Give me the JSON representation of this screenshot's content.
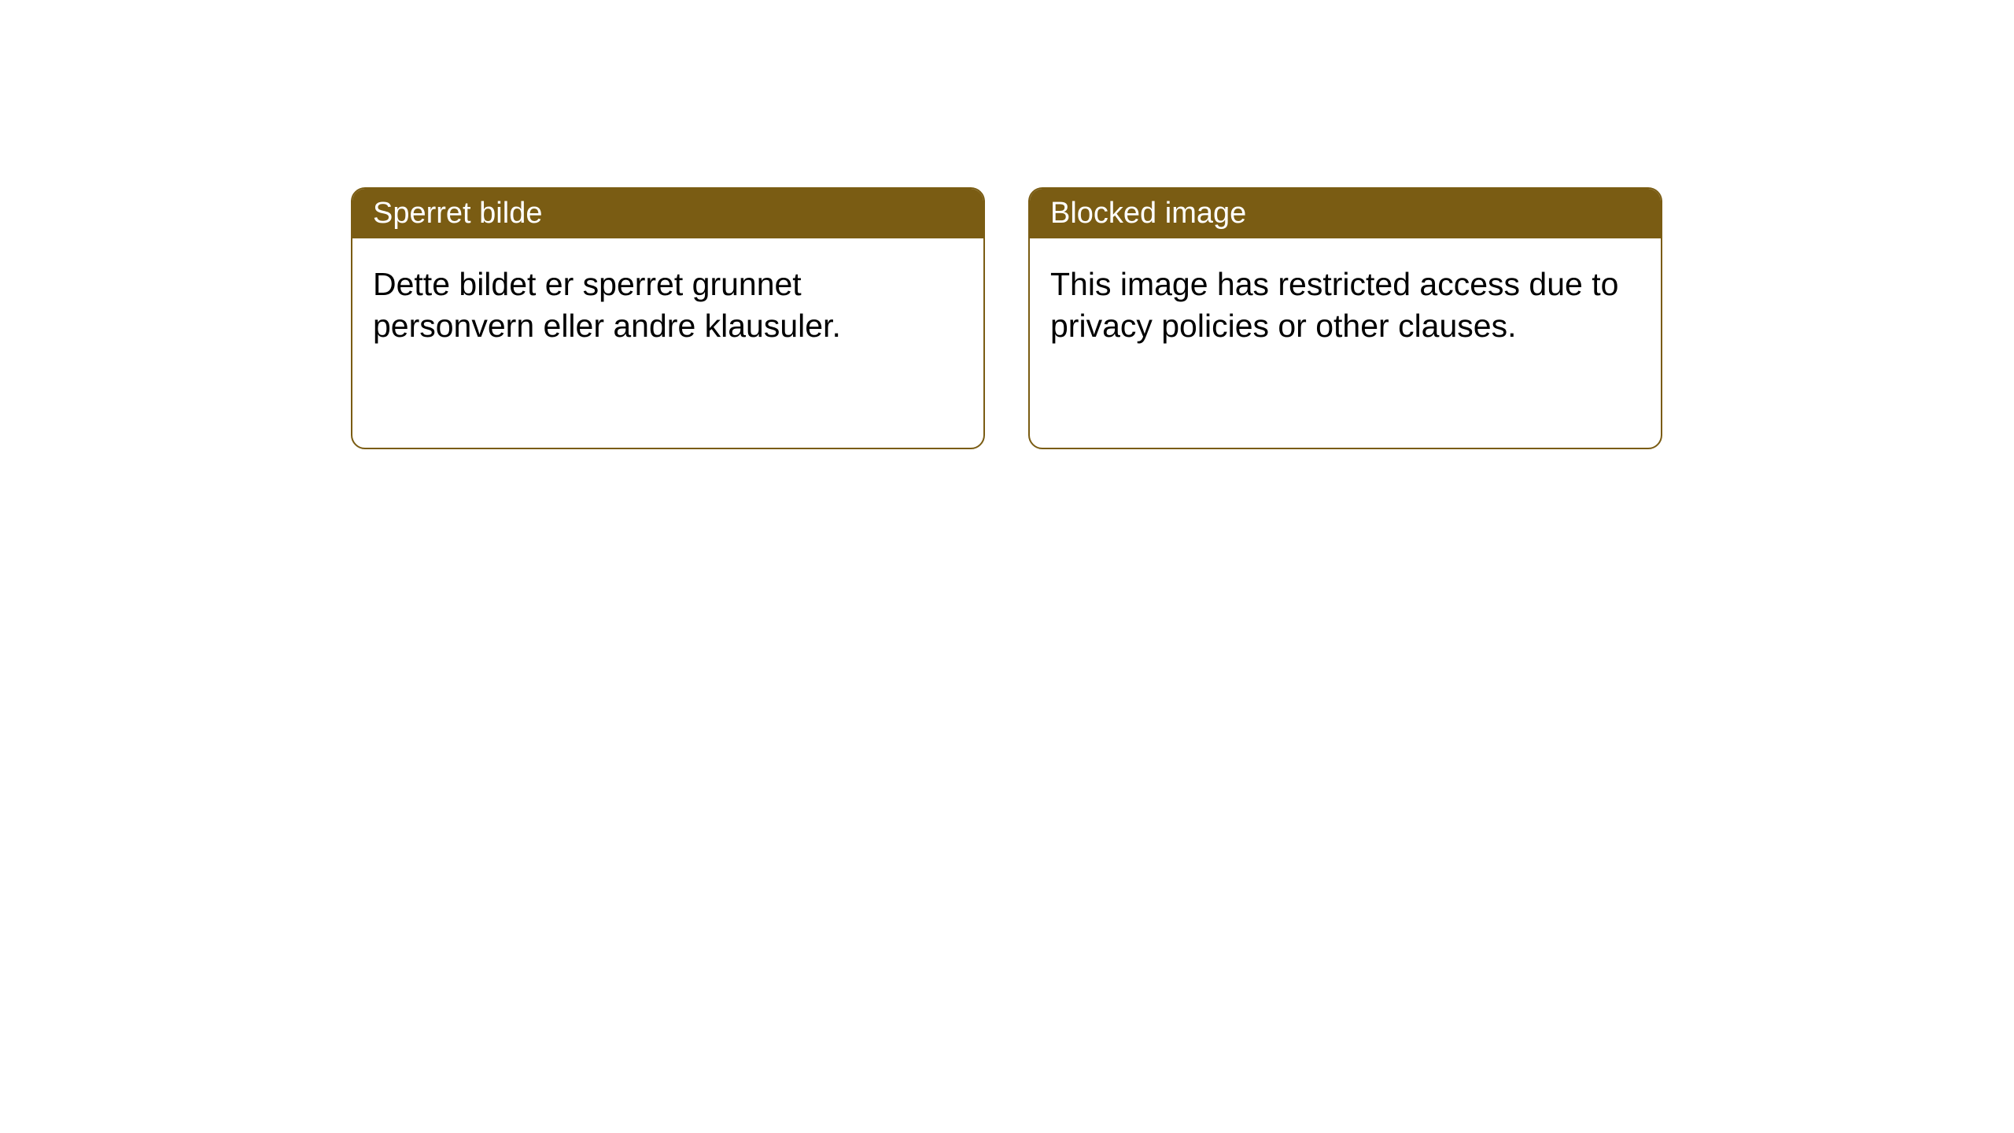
{
  "notices": [
    {
      "title": "Sperret bilde",
      "body": "Dette bildet er sperret grunnet personvern eller andre klausuler."
    },
    {
      "title": "Blocked image",
      "body": "This image has restricted access due to privacy policies or other clauses."
    }
  ],
  "colors": {
    "header_bg": "#7a5c13",
    "header_text": "#ffffff",
    "border": "#7a5c13",
    "body_text": "#000000",
    "page_bg": "#ffffff"
  },
  "typography": {
    "header_fontsize": 38,
    "body_fontsize": 41
  }
}
